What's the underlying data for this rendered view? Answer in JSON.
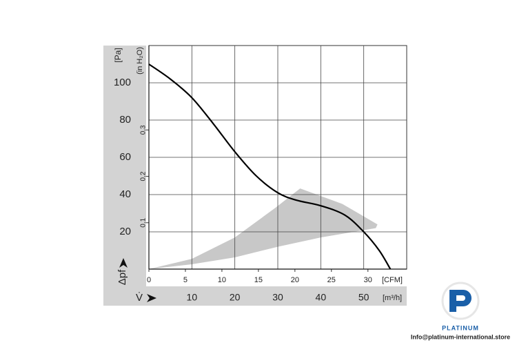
{
  "chart_data": {
    "type": "line",
    "x_label": "[m³/h]",
    "y_label": "[Pa]",
    "x2_label": "[CFM]",
    "y2_label": "(in H₂O)",
    "x_symbol": "V̇",
    "y_symbol": "Δpf",
    "xlim": [
      0,
      60
    ],
    "xticks": [
      10,
      20,
      30,
      40,
      50
    ],
    "ylim": [
      0,
      120
    ],
    "yticks": [
      20,
      40,
      60,
      80,
      100
    ],
    "x2lim": [
      0,
      35.31
    ],
    "x2ticks": [
      0,
      5,
      10,
      15,
      20,
      25,
      30
    ],
    "y2lim": [
      0,
      0.482
    ],
    "y2ticks": [
      {
        "value": 0.1,
        "label": "0,1"
      },
      {
        "value": 0.2,
        "label": "0,2"
      },
      {
        "value": 0.3,
        "label": "0,3"
      }
    ],
    "grid": true,
    "series": [
      {
        "color": "#000000",
        "x": [
          0,
          5,
          10,
          15,
          20,
          25,
          30,
          34.3,
          40,
          45.6,
          50,
          53.6,
          56.2
        ],
        "values": [
          110,
          102,
          92,
          78,
          63,
          50,
          41,
          37,
          34,
          29,
          20,
          10,
          0
        ]
      }
    ],
    "area": {
      "color": "#c8c8c8",
      "x": [
        0,
        10,
        20,
        30,
        40,
        52.8,
        53.2,
        45,
        35.2,
        29.5,
        20,
        10,
        0
      ],
      "values": [
        0,
        2.6,
        6.3,
        12,
        17,
        22,
        24,
        35,
        43.3,
        33,
        17,
        5.5,
        0
      ]
    },
    "logo": {
      "brand": "PLATINUM",
      "email": "Info@platinum-international.store"
    }
  }
}
